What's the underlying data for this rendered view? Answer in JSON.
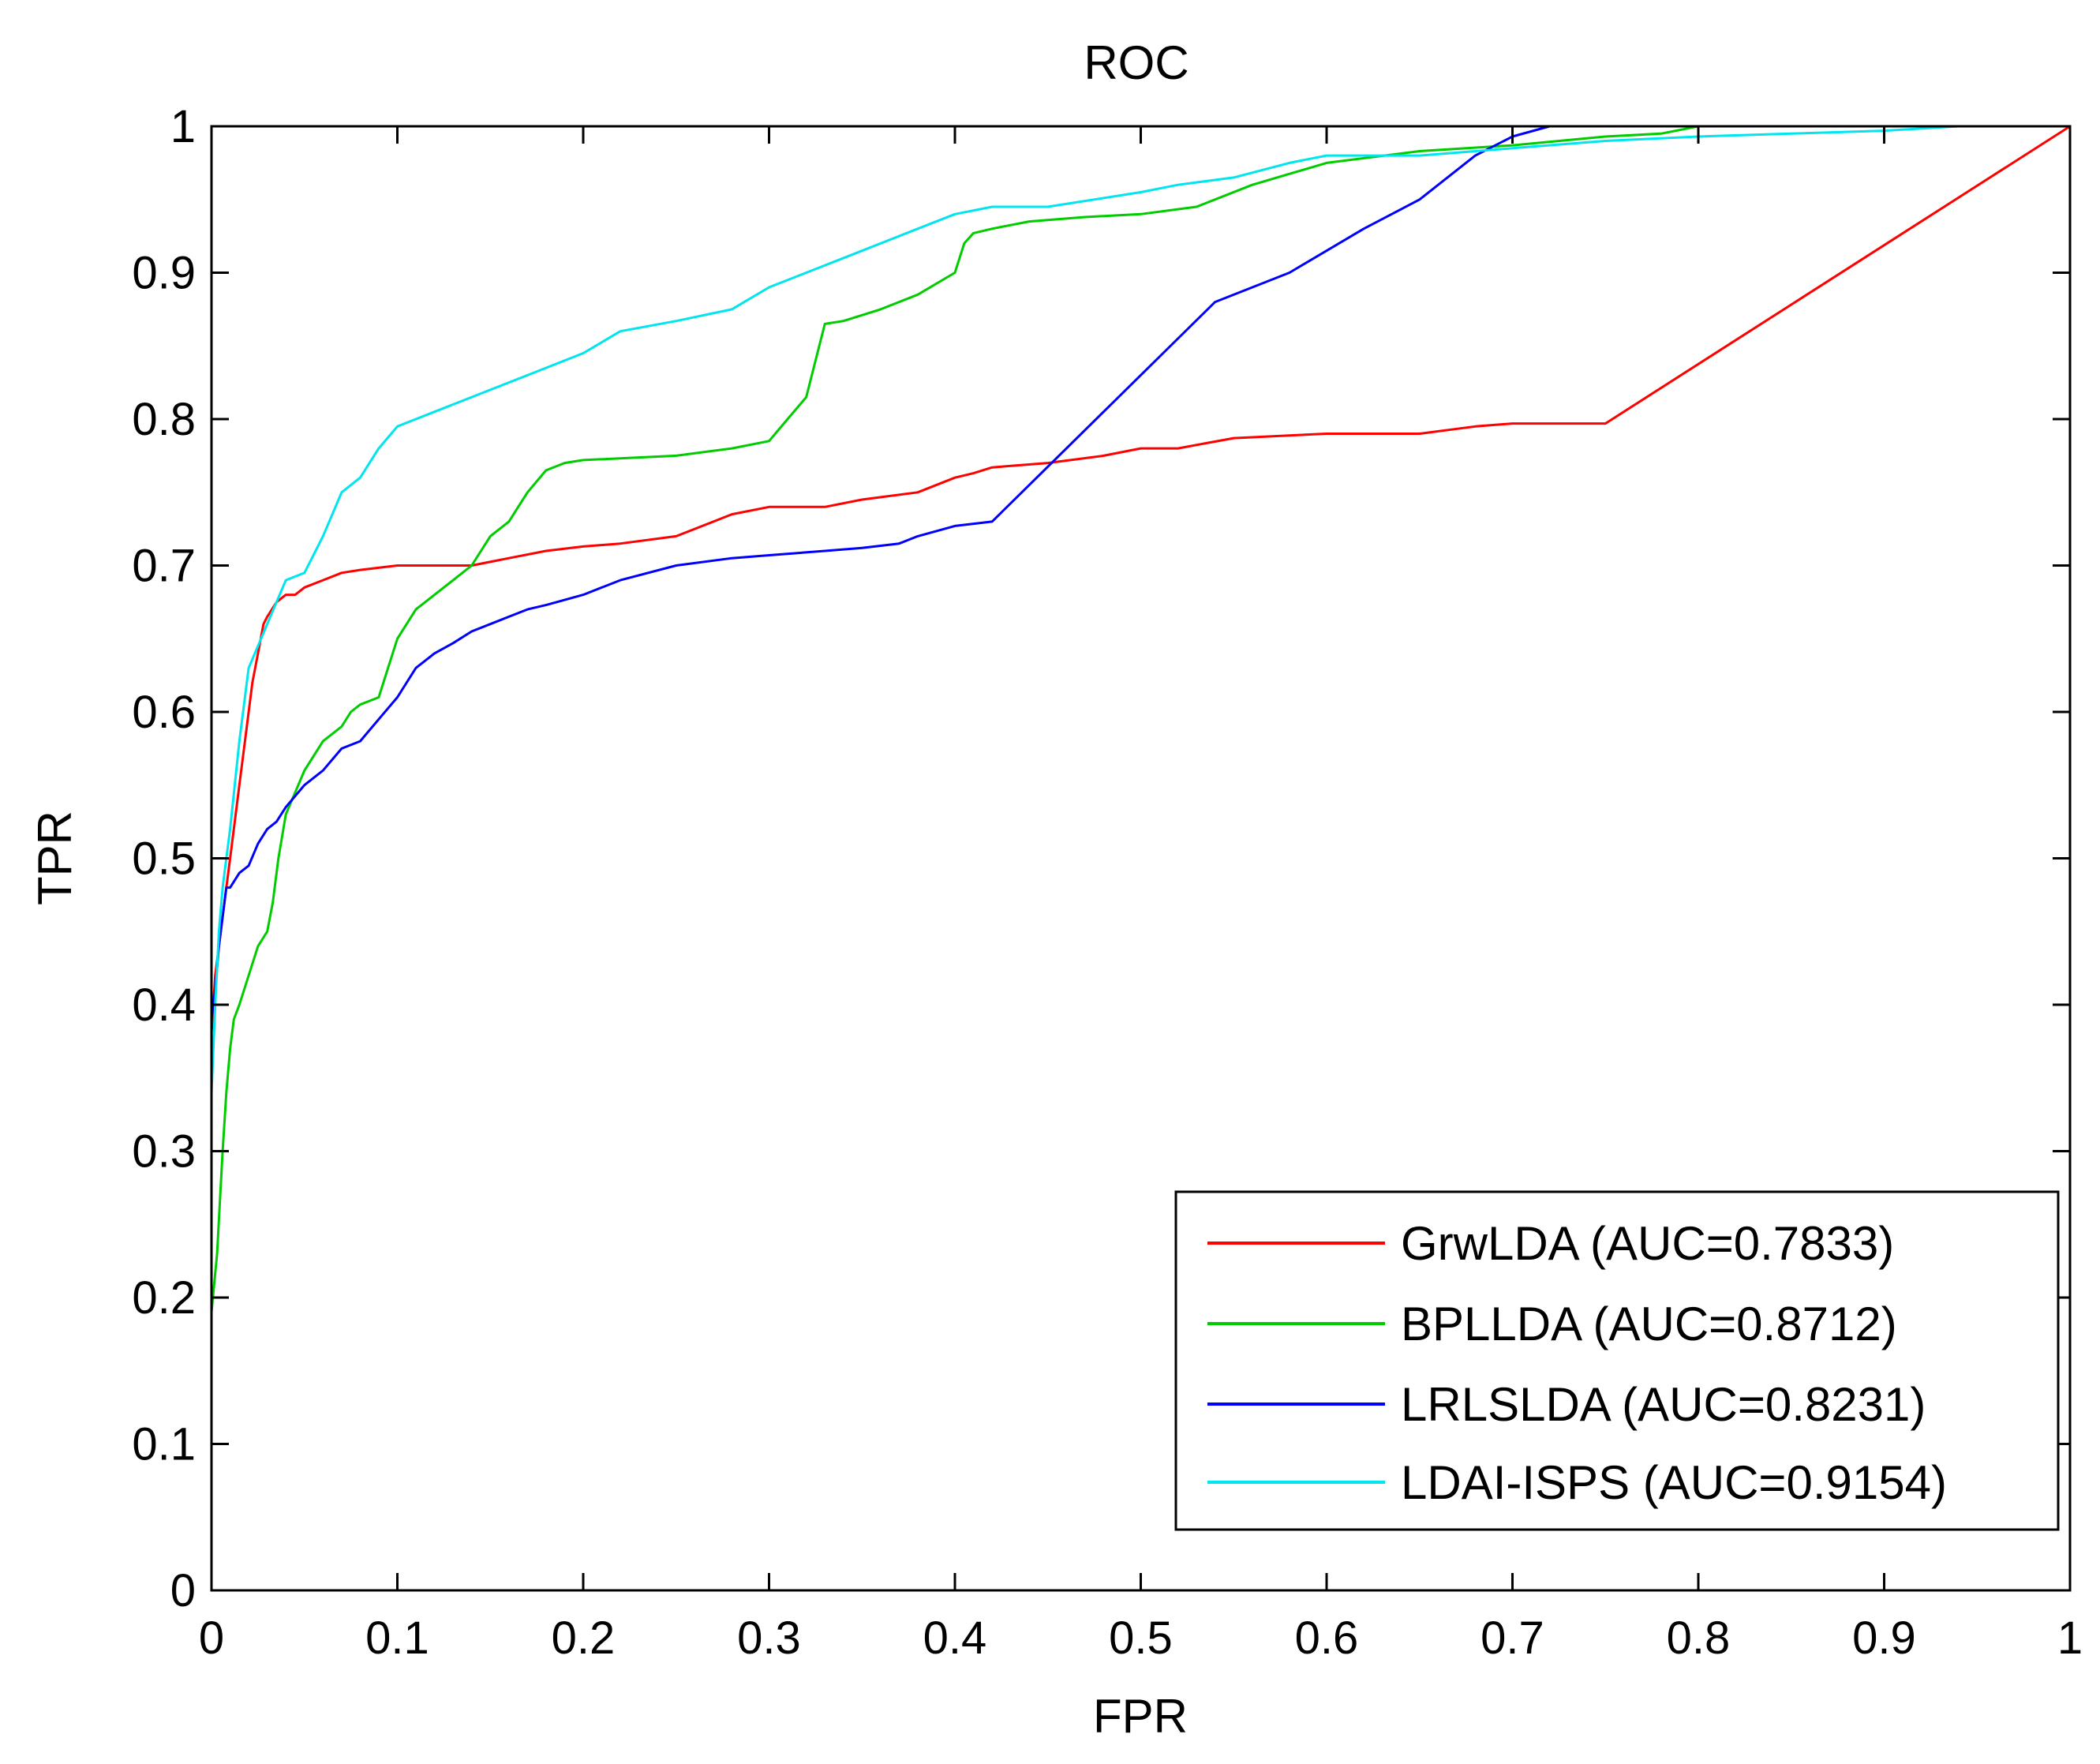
{
  "chart_data": {
    "type": "line",
    "title": "ROC",
    "xlabel": "FPR",
    "ylabel": "TPR",
    "xlim": [
      0,
      1
    ],
    "ylim": [
      0,
      1
    ],
    "xticks": [
      0,
      0.1,
      0.2,
      0.3,
      0.4,
      0.5,
      0.6,
      0.7,
      0.8,
      0.9,
      1
    ],
    "yticks": [
      0,
      0.1,
      0.2,
      0.3,
      0.4,
      0.5,
      0.6,
      0.7,
      0.8,
      0.9,
      1
    ],
    "xtick_labels": [
      "0",
      "0.1",
      "0.2",
      "0.3",
      "0.4",
      "0.5",
      "0.6",
      "0.7",
      "0.8",
      "0.9",
      "1"
    ],
    "ytick_labels": [
      "0",
      "0.1",
      "0.2",
      "0.3",
      "0.4",
      "0.5",
      "0.6",
      "0.7",
      "0.8",
      "0.9",
      "1"
    ],
    "grid": false,
    "legend_position": "bottom-right",
    "series": [
      {
        "name": "GrwLDA (AUC=0.7833)",
        "color": "#ff0000",
        "x": [
          0,
          0.002,
          0.004,
          0.006,
          0.008,
          0.01,
          0.012,
          0.015,
          0.018,
          0.02,
          0.022,
          0.025,
          0.028,
          0.03,
          0.035,
          0.04,
          0.045,
          0.05,
          0.06,
          0.07,
          0.08,
          0.1,
          0.12,
          0.14,
          0.16,
          0.18,
          0.2,
          0.22,
          0.25,
          0.28,
          0.3,
          0.33,
          0.35,
          0.38,
          0.4,
          0.41,
          0.42,
          0.45,
          0.48,
          0.5,
          0.52,
          0.55,
          0.6,
          0.65,
          0.68,
          0.7,
          0.72,
          0.75,
          1.0
        ],
        "y": [
          0.38,
          0.42,
          0.44,
          0.46,
          0.48,
          0.5,
          0.52,
          0.55,
          0.58,
          0.6,
          0.62,
          0.64,
          0.66,
          0.665,
          0.675,
          0.68,
          0.68,
          0.685,
          0.69,
          0.695,
          0.697,
          0.7,
          0.7,
          0.7,
          0.705,
          0.71,
          0.713,
          0.715,
          0.72,
          0.735,
          0.74,
          0.74,
          0.745,
          0.75,
          0.76,
          0.763,
          0.767,
          0.77,
          0.775,
          0.78,
          0.78,
          0.787,
          0.79,
          0.79,
          0.795,
          0.797,
          0.797,
          0.797,
          1.0
        ]
      },
      {
        "name": "BPLLDA (AUC=0.8712)",
        "color": "#00cc00",
        "x": [
          0,
          0.003,
          0.006,
          0.008,
          0.01,
          0.012,
          0.015,
          0.02,
          0.025,
          0.03,
          0.033,
          0.036,
          0.04,
          0.05,
          0.055,
          0.06,
          0.07,
          0.075,
          0.08,
          0.09,
          0.095,
          0.1,
          0.11,
          0.12,
          0.13,
          0.14,
          0.15,
          0.16,
          0.17,
          0.18,
          0.19,
          0.2,
          0.25,
          0.28,
          0.3,
          0.31,
          0.32,
          0.33,
          0.34,
          0.36,
          0.38,
          0.4,
          0.405,
          0.41,
          0.42,
          0.44,
          0.47,
          0.5,
          0.53,
          0.56,
          0.6,
          0.65,
          0.7,
          0.75,
          0.78,
          0.8
        ],
        "y": [
          0.19,
          0.23,
          0.3,
          0.34,
          0.37,
          0.39,
          0.4,
          0.42,
          0.44,
          0.45,
          0.47,
          0.5,
          0.53,
          0.56,
          0.57,
          0.58,
          0.59,
          0.6,
          0.605,
          0.61,
          0.63,
          0.65,
          0.67,
          0.68,
          0.69,
          0.7,
          0.72,
          0.73,
          0.75,
          0.765,
          0.77,
          0.772,
          0.775,
          0.78,
          0.785,
          0.8,
          0.815,
          0.865,
          0.867,
          0.875,
          0.885,
          0.9,
          0.92,
          0.927,
          0.93,
          0.935,
          0.938,
          0.94,
          0.945,
          0.96,
          0.975,
          0.983,
          0.987,
          0.993,
          0.995,
          1.0
        ]
      },
      {
        "name": "LRLSLDA (AUC=0.8231)",
        "color": "#0000ff",
        "x": [
          0,
          0.002,
          0.004,
          0.006,
          0.008,
          0.01,
          0.015,
          0.02,
          0.025,
          0.03,
          0.035,
          0.04,
          0.05,
          0.06,
          0.07,
          0.08,
          0.09,
          0.1,
          0.11,
          0.12,
          0.13,
          0.14,
          0.15,
          0.16,
          0.17,
          0.18,
          0.2,
          0.22,
          0.25,
          0.28,
          0.3,
          0.33,
          0.35,
          0.37,
          0.38,
          0.4,
          0.42,
          0.54,
          0.58,
          0.62,
          0.65,
          0.68,
          0.7,
          0.72
        ],
        "y": [
          0.39,
          0.41,
          0.44,
          0.46,
          0.48,
          0.48,
          0.49,
          0.495,
          0.51,
          0.52,
          0.525,
          0.535,
          0.55,
          0.56,
          0.575,
          0.58,
          0.595,
          0.61,
          0.63,
          0.64,
          0.647,
          0.655,
          0.66,
          0.665,
          0.67,
          0.673,
          0.68,
          0.69,
          0.7,
          0.705,
          0.707,
          0.71,
          0.712,
          0.715,
          0.72,
          0.727,
          0.73,
          0.88,
          0.9,
          0.93,
          0.95,
          0.98,
          0.993,
          1.0
        ]
      },
      {
        "name": "LDAI-ISPS (AUC=0.9154)",
        "color": "#00e5ee",
        "x": [
          0,
          0.002,
          0.004,
          0.006,
          0.008,
          0.01,
          0.015,
          0.02,
          0.025,
          0.03,
          0.035,
          0.04,
          0.05,
          0.06,
          0.07,
          0.08,
          0.09,
          0.1,
          0.11,
          0.12,
          0.13,
          0.15,
          0.17,
          0.2,
          0.22,
          0.25,
          0.28,
          0.3,
          0.32,
          0.35,
          0.37,
          0.4,
          0.42,
          0.45,
          0.5,
          0.52,
          0.55,
          0.58,
          0.6,
          0.65,
          0.7,
          0.75,
          0.8,
          0.85,
          0.9,
          0.94
        ],
        "y": [
          0.34,
          0.4,
          0.45,
          0.48,
          0.5,
          0.52,
          0.58,
          0.63,
          0.645,
          0.66,
          0.675,
          0.69,
          0.695,
          0.72,
          0.75,
          0.76,
          0.78,
          0.795,
          0.8,
          0.805,
          0.81,
          0.82,
          0.83,
          0.845,
          0.86,
          0.867,
          0.875,
          0.89,
          0.9,
          0.915,
          0.925,
          0.94,
          0.945,
          0.945,
          0.955,
          0.96,
          0.965,
          0.975,
          0.98,
          0.98,
          0.985,
          0.99,
          0.993,
          0.995,
          0.997,
          1.0
        ]
      }
    ]
  }
}
